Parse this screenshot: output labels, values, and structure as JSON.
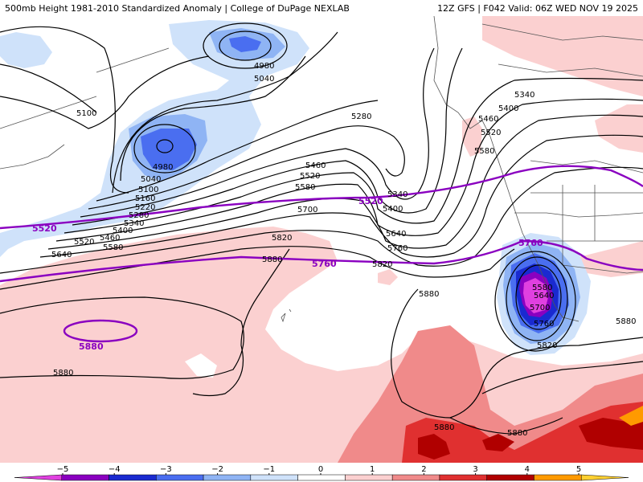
{
  "header": {
    "title_left": "500mb Height 1981-2010 Standardized Anomaly | College of DuPage NEXLAB",
    "title_right": "12Z GFS | F042 Valid: 06Z WED NOV 19 2025"
  },
  "contours": {
    "black_labels": [
      "5100",
      "4980",
      "5040",
      "4980",
      "5040",
      "5100",
      "5160",
      "5220",
      "5280",
      "5340",
      "5400",
      "5460",
      "5520",
      "5580",
      "5640",
      "5280",
      "5460",
      "5520",
      "5580",
      "5700",
      "5340",
      "5400",
      "5640",
      "5760",
      "5820",
      "5880",
      "5820",
      "5880",
      "5880",
      "5340",
      "5400",
      "5460",
      "5520",
      "5580",
      "5580",
      "5640",
      "5700",
      "5760",
      "5820",
      "5880",
      "5880",
      "5880"
    ],
    "purple_labels": [
      "5520",
      "5520",
      "5760",
      "5760",
      "5880"
    ]
  },
  "legend": {
    "ticks": [
      "−5",
      "−4",
      "−3",
      "−2",
      "−1",
      "0",
      "1",
      "2",
      "3",
      "4",
      "5"
    ],
    "colors": [
      "#e040e0",
      "#8a00c0",
      "#1a2ad0",
      "#4a6ef0",
      "#8fb4f4",
      "#cfe2fa",
      "#ffffff",
      "#fbd0d0",
      "#f08a8a",
      "#e03030",
      "#b00000",
      "#ff9a00",
      "#ffd030"
    ]
  }
}
